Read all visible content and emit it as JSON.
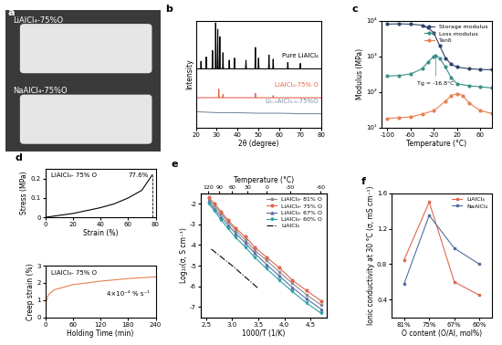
{
  "chart_data": [
    {
      "panel": "a",
      "type": "image",
      "texts": [
        "LiAlCl₄-75%O",
        "NaAlCl₄-75%O"
      ]
    },
    {
      "panel": "b",
      "type": "line",
      "x_label": "2θ (degree)",
      "y_label": "Intensity",
      "xlim": [
        20,
        80
      ],
      "xticks": [
        20,
        30,
        40,
        50,
        60,
        70,
        80
      ],
      "ylim": [
        0,
        100
      ],
      "tick_labels": "x",
      "series": [
        {
          "name": "Pure LiAlCl₄",
          "color": "#000000",
          "marker": "none",
          "line_style": "solid",
          "x": [
            20,
            22.3,
            22.5,
            22.7,
            24.8,
            25,
            25.2,
            27.8,
            28,
            28.2,
            29.3,
            29.5,
            29.7,
            30.3,
            30.5,
            30.7,
            31.3,
            31.5,
            31.7,
            32.8,
            33,
            33.2,
            35.8,
            36,
            36.2,
            38.3,
            38.5,
            38.7,
            43.8,
            44,
            44.2,
            48.3,
            48.5,
            48.7,
            49.8,
            50,
            50.2,
            54.8,
            55,
            55.2,
            56.8,
            57,
            57.2,
            63.8,
            64,
            64.2,
            69.8,
            70,
            70.2,
            80
          ],
          "values": [
            55,
            55,
            62,
            55,
            55,
            66,
            55,
            55,
            72,
            55,
            55,
            98,
            55,
            55,
            92,
            55,
            55,
            85,
            55,
            55,
            70,
            55,
            55,
            63,
            55,
            55,
            65,
            55,
            55,
            63,
            55,
            55,
            75,
            55,
            55,
            65,
            55,
            55,
            68,
            55,
            55,
            64,
            55,
            55,
            61,
            55,
            55,
            60,
            55,
            55
          ]
        },
        {
          "name": "LiAlCl₄-75% O",
          "color": "#e06650",
          "marker": "none",
          "line_style": "solid",
          "x": [
            20,
            30.8,
            31,
            31.2,
            32.8,
            33,
            33.2,
            48.3,
            48.5,
            48.7,
            56.8,
            57,
            57.2,
            80
          ],
          "values": [
            28,
            28,
            36,
            28,
            28,
            31,
            28,
            28,
            32,
            28,
            28,
            30,
            28,
            28
          ]
        },
        {
          "name": "Li₀.₆AlCl₃.₆-75%O",
          "color": "#7f8fa6",
          "marker": "none",
          "line_style": "solid",
          "x": [
            20,
            30,
            40,
            50,
            60,
            70,
            80
          ],
          "values": [
            15,
            14,
            14,
            13.5,
            13.5,
            13,
            13
          ]
        }
      ]
    },
    {
      "panel": "c",
      "type": "line",
      "x_label": "Temperature (°C)",
      "y_label": "Modulus (MPa)",
      "log": "y",
      "xlim": [
        -110,
        80
      ],
      "xticks": [
        -100,
        -60,
        -20,
        20,
        60
      ],
      "ylim": [
        10,
        10000
      ],
      "yticks": [
        {
          "value": 10,
          "label": "10¹"
        },
        {
          "value": 100,
          "label": "10²"
        },
        {
          "value": 1000,
          "label": "10³"
        },
        {
          "value": 10000,
          "label": "10⁴"
        }
      ],
      "legend": "upper right",
      "annotations": [
        {
          "text": "Tg = -16.8°C",
          "x": -16.8,
          "y": 1050
        }
      ],
      "series": [
        {
          "name": "Storage modulus",
          "color": "#2f4068",
          "marker": "circle",
          "line_style": "solid",
          "x": [
            -100,
            -80,
            -60,
            -40,
            -30,
            -20,
            -10,
            0,
            10,
            20,
            40,
            60,
            80
          ],
          "values": [
            8000,
            8200,
            8000,
            7500,
            6500,
            4500,
            2000,
            900,
            600,
            500,
            450,
            430,
            420
          ]
        },
        {
          "name": "Loss modulus",
          "color": "#3b8f86",
          "marker": "circle",
          "line_style": "solid",
          "x": [
            -100,
            -80,
            -60,
            -40,
            -30,
            -20,
            -16.8,
            -10,
            0,
            10,
            20,
            40,
            60,
            80
          ],
          "values": [
            280,
            290,
            320,
            450,
            700,
            1000,
            1050,
            900,
            500,
            250,
            170,
            150,
            140,
            130
          ]
        },
        {
          "name": "Tanδ",
          "color": "#e8804f",
          "marker": "circle",
          "line_style": "solid",
          "x": [
            -100,
            -80,
            -60,
            -40,
            -20,
            0,
            10,
            20,
            30,
            40,
            60,
            80
          ],
          "values": [
            18,
            19,
            20,
            24,
            30,
            55,
            80,
            90,
            80,
            50,
            30,
            25
          ]
        }
      ]
    },
    {
      "panel": "d",
      "type": "line",
      "title": "LiAlCl₄- 75% O",
      "x_label": "Strain (%)",
      "y_label": "Stress (MPa)",
      "xlim": [
        0,
        80
      ],
      "xticks": [
        0,
        20,
        40,
        60,
        80
      ],
      "ylim": [
        0,
        0.25
      ],
      "yticks": [
        0,
        0.1,
        0.2
      ],
      "annotations": [
        {
          "text": "77.6%",
          "x": 77.6,
          "y": 0.22
        }
      ],
      "series": [
        {
          "color": "#000000",
          "marker": "none",
          "line_style": "solid",
          "x": [
            0,
            10,
            20,
            30,
            40,
            50,
            60,
            70,
            77.6
          ],
          "values": [
            0,
            0.01,
            0.02,
            0.035,
            0.05,
            0.07,
            0.1,
            0.14,
            0.22
          ]
        }
      ]
    },
    {
      "type": "line",
      "title": "LiAlCl₄- 75% O",
      "x_label": "Holding Time (min)",
      "y_label": "Creep strain (%)",
      "xlim": [
        0,
        240
      ],
      "xticks": [
        0,
        60,
        120,
        180,
        240
      ],
      "ylim": [
        0,
        3
      ],
      "yticks": [
        0,
        1,
        2,
        3
      ],
      "annotations": [
        "4×10⁻⁴ % s⁻¹"
      ],
      "series": [
        {
          "color": "#e8804f",
          "marker": "none",
          "line_style": "solid",
          "x": [
            0,
            2,
            5,
            10,
            20,
            40,
            60,
            90,
            120,
            180,
            240
          ],
          "values": [
            0,
            0.9,
            1.2,
            1.4,
            1.6,
            1.75,
            1.9,
            2.0,
            2.1,
            2.25,
            2.35
          ]
        }
      ]
    },
    {
      "panel": "e",
      "type": "line",
      "x_label": "1000/T (1/K)",
      "y_label": "Log₁₀(σ, S cm⁻¹)",
      "x2_label": "Temperature (°C)",
      "x2ticks": [
        120,
        90,
        60,
        30,
        0,
        -30,
        -60
      ],
      "xlim": [
        2.4,
        4.8
      ],
      "xticks": [
        2.5,
        3.0,
        3.5,
        4.0,
        4.5
      ],
      "ylim": [
        -7.5,
        -1.5
      ],
      "yticks": [
        -7,
        -6,
        -5,
        -4,
        -3,
        -2
      ],
      "legend": "upper right",
      "x": [
        2.55,
        2.66,
        2.79,
        2.92,
        3.07,
        3.25,
        3.43,
        3.66,
        3.9,
        4.15,
        4.42,
        4.7
      ],
      "series": [
        {
          "name": "LiAlCl₄- 81% O",
          "color": "#8c8c8c",
          "marker": "square",
          "line_style": "solid",
          "values": [
            -1.8,
            -2.1,
            -2.5,
            -2.9,
            -3.3,
            -3.75,
            -4.25,
            -4.75,
            -5.3,
            -5.85,
            -6.4,
            -6.9
          ]
        },
        {
          "name": "LiAlCl₄- 75% O",
          "color": "#e06650",
          "marker": "circle",
          "line_style": "solid",
          "values": [
            -1.7,
            -2.0,
            -2.4,
            -2.8,
            -3.2,
            -3.6,
            -4.1,
            -4.6,
            -5.1,
            -5.7,
            -6.2,
            -6.7
          ]
        },
        {
          "name": "LiAlCl₄- 67% O",
          "color": "#5b6fa8",
          "marker": "triangle_up",
          "line_style": "solid",
          "values": [
            -1.9,
            -2.25,
            -2.65,
            -3.05,
            -3.45,
            -3.9,
            -4.4,
            -4.95,
            -5.5,
            -6.05,
            -6.6,
            -7.1
          ]
        },
        {
          "name": "LiAlCl₄- 60% O",
          "color": "#2aa0a0",
          "marker": "triangle_down",
          "line_style": "solid",
          "values": [
            -2.0,
            -2.35,
            -2.8,
            -3.2,
            -3.65,
            -4.1,
            -4.6,
            -5.15,
            -5.7,
            -6.25,
            -6.8,
            -7.3
          ]
        },
        {
          "name": "LiAlCl₄",
          "color": "#000000",
          "marker": "none",
          "line_style": "dashdot",
          "x": [
            2.6,
            3.0,
            3.5
          ],
          "values": [
            -4.2,
            -5.0,
            -6.1
          ]
        }
      ]
    },
    {
      "panel": "f",
      "type": "line",
      "x_label": "O content (O/Al, mol%)",
      "y_label": "Ionic conductivity at 30 °C (σ, mS cm⁻¹)",
      "categories": [
        "81%",
        "75%",
        "67%",
        "60%"
      ],
      "ylim": [
        0.2,
        1.6
      ],
      "yticks": [
        0.4,
        0.8,
        1.2,
        1.6
      ],
      "legend": "upper right",
      "series": [
        {
          "name": "LiAlCl₄",
          "color": "#e06650",
          "marker": "square",
          "line_style": "solid",
          "values": [
            0.85,
            1.5,
            0.6,
            0.45
          ]
        },
        {
          "name": "NaAlCl₄",
          "color": "#4f6fa0",
          "marker": "square",
          "line_style": "solid",
          "values": [
            0.58,
            1.35,
            0.98,
            0.8
          ]
        }
      ]
    }
  ]
}
